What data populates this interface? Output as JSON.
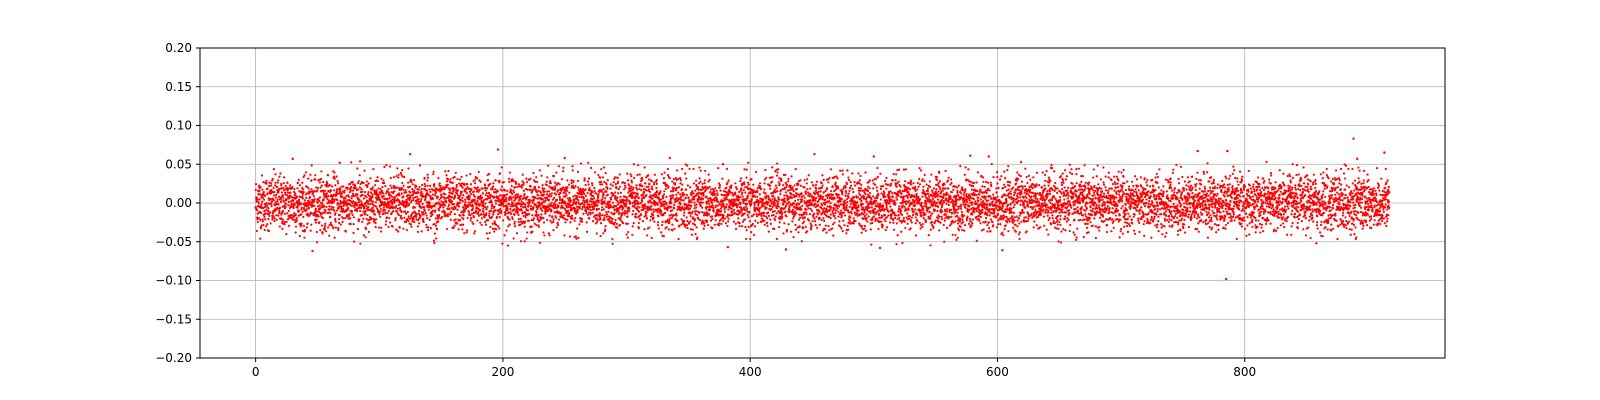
{
  "chart_data": {
    "type": "scatter",
    "title": "",
    "xlabel": "",
    "ylabel": "",
    "xlim": [
      -45,
      962
    ],
    "ylim": [
      -0.2,
      0.2
    ],
    "xticks": [
      0,
      200,
      400,
      600,
      800
    ],
    "xtick_labels": [
      "0",
      "200",
      "400",
      "600",
      "800"
    ],
    "yticks": [
      -0.2,
      -0.15,
      -0.1,
      -0.05,
      0.0,
      0.05,
      0.1,
      0.15,
      0.2
    ],
    "ytick_labels": [
      "−0.20",
      "−0.15",
      "−0.10",
      "−0.05",
      "0.00",
      "0.05",
      "0.10",
      "0.15",
      "0.20"
    ],
    "grid": true,
    "legend": "none",
    "marker_color": "#ff0000",
    "series": [
      {
        "x_range": [
          0,
          917
        ],
        "distribution": "noise around zero",
        "typical_range": [
          -0.035,
          0.035
        ],
        "num_points_estimate": 9000,
        "notable_points": [
          {
            "x": 30,
            "y": 0.057
          },
          {
            "x": 46,
            "y": -0.062
          },
          {
            "x": 68,
            "y": 0.052
          },
          {
            "x": 125,
            "y": 0.063
          },
          {
            "x": 196,
            "y": 0.069
          },
          {
            "x": 250,
            "y": 0.058
          },
          {
            "x": 335,
            "y": 0.058
          },
          {
            "x": 378,
            "y": 0.05
          },
          {
            "x": 382,
            "y": -0.057
          },
          {
            "x": 429,
            "y": -0.06
          },
          {
            "x": 452,
            "y": 0.063
          },
          {
            "x": 500,
            "y": 0.06
          },
          {
            "x": 505,
            "y": -0.058
          },
          {
            "x": 578,
            "y": 0.061
          },
          {
            "x": 593,
            "y": 0.06
          },
          {
            "x": 604,
            "y": -0.061
          },
          {
            "x": 762,
            "y": 0.067
          },
          {
            "x": 785,
            "y": -0.098
          },
          {
            "x": 786,
            "y": 0.067
          },
          {
            "x": 858,
            "y": -0.052
          },
          {
            "x": 888,
            "y": 0.083
          },
          {
            "x": 891,
            "y": 0.057
          },
          {
            "x": 913,
            "y": 0.065
          }
        ]
      }
    ]
  }
}
